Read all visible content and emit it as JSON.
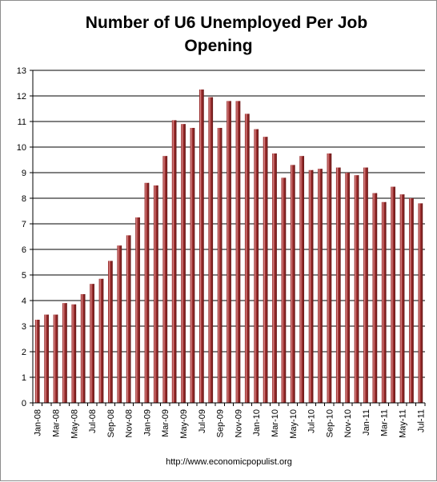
{
  "chart_data": {
    "type": "bar",
    "title_lines": [
      "Number of U6 Unemployed Per Job",
      "Opening"
    ],
    "xlabel": "",
    "ylabel": "",
    "ylim": [
      0,
      13
    ],
    "yticks": [
      0,
      1,
      2,
      3,
      4,
      5,
      6,
      7,
      8,
      9,
      10,
      11,
      12,
      13
    ],
    "grid": true,
    "bar_color": "#9b2d2d",
    "categories": [
      "Jan-08",
      "Feb-08",
      "Mar-08",
      "Apr-08",
      "May-08",
      "Jun-08",
      "Jul-08",
      "Aug-08",
      "Sep-08",
      "Oct-08",
      "Nov-08",
      "Dec-08",
      "Jan-09",
      "Feb-09",
      "Mar-09",
      "Apr-09",
      "May-09",
      "Jun-09",
      "Jul-09",
      "Aug-09",
      "Sep-09",
      "Oct-09",
      "Nov-09",
      "Dec-09",
      "Jan-10",
      "Feb-10",
      "Mar-10",
      "Apr-10",
      "May-10",
      "Jun-10",
      "Jul-10",
      "Aug-10",
      "Sep-10",
      "Oct-10",
      "Nov-10",
      "Dec-10",
      "Jan-11",
      "Feb-11",
      "Mar-11",
      "Apr-11",
      "May-11",
      "Jun-11",
      "Jul-11"
    ],
    "tick_labels": [
      "Jan-08",
      "Mar-08",
      "May-08",
      "Jul-08",
      "Sep-08",
      "Nov-08",
      "Jan-09",
      "Mar-09",
      "May-09",
      "Jul-09",
      "Sep-09",
      "Nov-09",
      "Jan-10",
      "Mar-10",
      "May-10",
      "Jul-10",
      "Sep-10",
      "Nov-10",
      "Jan-11",
      "Mar-11",
      "May-11",
      "Jul-11"
    ],
    "values": [
      3.25,
      3.45,
      3.45,
      3.9,
      3.85,
      4.25,
      4.65,
      4.85,
      5.55,
      6.15,
      6.55,
      7.25,
      8.6,
      8.5,
      9.65,
      11.05,
      10.9,
      10.75,
      12.25,
      11.95,
      10.75,
      11.8,
      11.8,
      11.3,
      10.7,
      10.4,
      9.75,
      8.8,
      9.3,
      9.65,
      9.1,
      9.15,
      9.75,
      9.2,
      9.0,
      8.9,
      9.2,
      8.2,
      7.85,
      8.45,
      8.15,
      8.0,
      7.8
    ]
  },
  "source_text": "http://www.economicpopulist.org"
}
